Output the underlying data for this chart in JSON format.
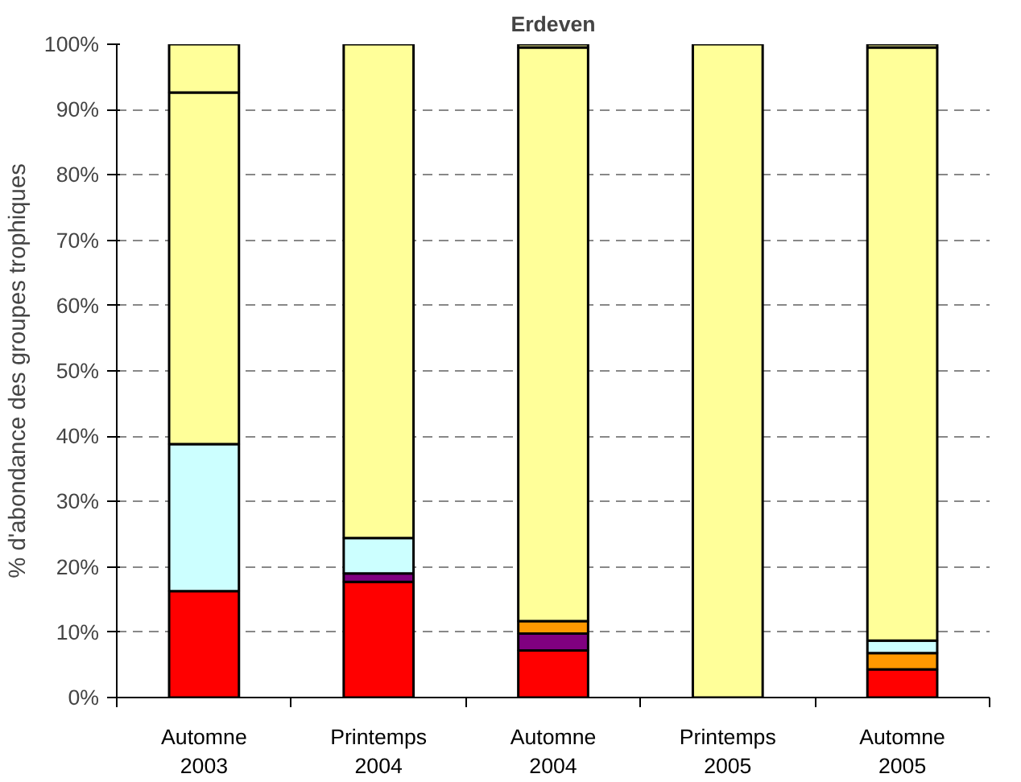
{
  "chart_data": {
    "type": "bar",
    "stacked": true,
    "title": "Erdeven",
    "ylabel": "% d'abondance des groupes trophiques",
    "categories": [
      "Automne\n2003",
      "Printemps\n2004",
      "Automne\n2004",
      "Printemps\n2005",
      "Automne\n2005"
    ],
    "series": [
      {
        "color": "#ff0000",
        "values": [
          16.3,
          17.7,
          7.2,
          0,
          4.3
        ]
      },
      {
        "color": "#800080",
        "values": [
          0,
          1.3,
          2.6,
          0,
          0
        ]
      },
      {
        "color": "#ff9900",
        "values": [
          0,
          0,
          1.9,
          0,
          2.5
        ]
      },
      {
        "color": "#ccffff",
        "values": [
          22.5,
          5.4,
          0,
          0,
          1.9
        ]
      },
      {
        "color": "#ffff99",
        "values": [
          53.8,
          75.6,
          87.8,
          100,
          90.8
        ]
      },
      {
        "color": "#ffff99",
        "values": [
          7.4,
          0,
          0.5,
          0,
          0.5
        ]
      }
    ],
    "ylim": [
      0,
      100
    ],
    "yticks": [
      {
        "value": 0,
        "label": "0%"
      },
      {
        "value": 10,
        "label": "10%"
      },
      {
        "value": 20,
        "label": "20%"
      },
      {
        "value": 30,
        "label": "30%"
      },
      {
        "value": 40,
        "label": "40%"
      },
      {
        "value": 50,
        "label": "50%"
      },
      {
        "value": 60,
        "label": "60%"
      },
      {
        "value": 70,
        "label": "70%"
      },
      {
        "value": 80,
        "label": "80%"
      },
      {
        "value": 90,
        "label": "90%"
      },
      {
        "value": 100,
        "label": "100%"
      }
    ],
    "grid": "y",
    "line_style": "dashed"
  }
}
